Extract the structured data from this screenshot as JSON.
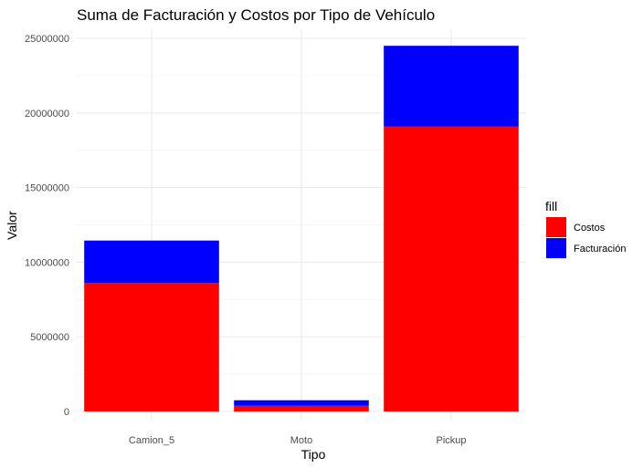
{
  "chart_data": {
    "type": "bar",
    "stacked": true,
    "title": "Suma de Facturación y Costos por Tipo de Vehículo",
    "xlabel": "Tipo",
    "ylabel": "Valor",
    "categories": [
      "Camion_5",
      "Moto",
      "Pickup"
    ],
    "series": [
      {
        "name": "Costos",
        "color": "#ff0000",
        "values": [
          8600000,
          380000,
          19100000
        ]
      },
      {
        "name": "Facturación",
        "color": "#0000ff",
        "values": [
          2850000,
          370000,
          5400000
        ]
      }
    ],
    "ylim": [
      0,
      25500000
    ],
    "yticks": [
      0,
      5000000,
      10000000,
      15000000,
      20000000,
      25000000
    ],
    "ytick_labels": [
      "0",
      "5000000",
      "10000000",
      "15000000",
      "20000000",
      "25000000"
    ],
    "grid": true,
    "legend": {
      "title": "fill",
      "position": "right",
      "entries": [
        {
          "label": "Costos",
          "color": "#ff0000"
        },
        {
          "label": "Facturación",
          "color": "#0000ff"
        }
      ]
    }
  }
}
